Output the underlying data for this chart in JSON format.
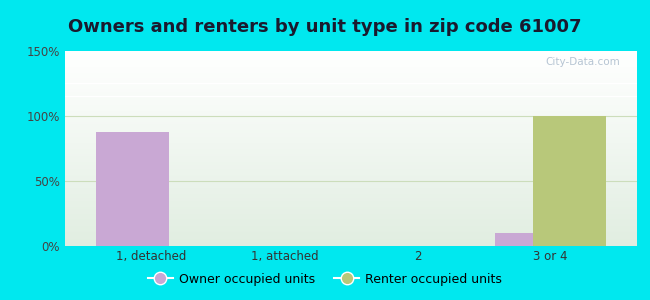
{
  "title": "Owners and renters by unit type in zip code 61007",
  "categories": [
    "1, detached",
    "1, attached",
    "2",
    "3 or 4"
  ],
  "owner_values": [
    88,
    0,
    0,
    10
  ],
  "renter_values": [
    0,
    0,
    0,
    100
  ],
  "owner_color": "#c9a8d4",
  "renter_color": "#b8c87a",
  "ylim": [
    0,
    150
  ],
  "yticks": [
    0,
    50,
    100,
    150
  ],
  "ytick_labels": [
    "0%",
    "50%",
    "100%",
    "150%"
  ],
  "bar_width": 0.55,
  "figure_bg": "#00e8ef",
  "legend_owner": "Owner occupied units",
  "legend_renter": "Renter occupied units",
  "title_fontsize": 13,
  "tick_fontsize": 8.5,
  "legend_fontsize": 9,
  "watermark": "City-Data.com"
}
